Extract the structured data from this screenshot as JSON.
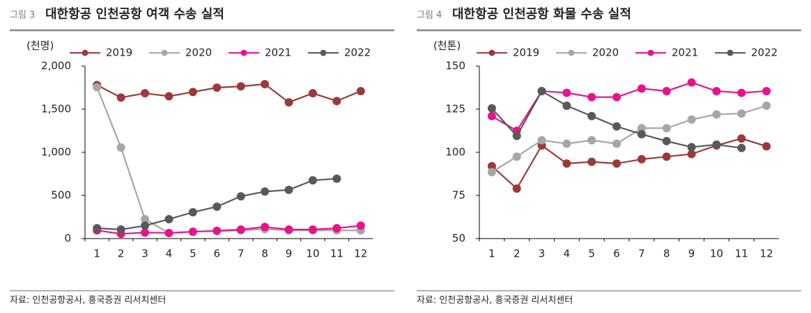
{
  "chart_data": [
    {
      "type": "line",
      "figure_label": "그림 3",
      "title": "대한항공 인천공항 여객 수송 실적",
      "y_label": "(천명)",
      "source": "자료: 인천공항공사, 흥국증권 리서치센터",
      "categories": [
        "1",
        "2",
        "3",
        "4",
        "5",
        "6",
        "7",
        "8",
        "9",
        "10",
        "11",
        "12"
      ],
      "ylim": [
        0,
        2000
      ],
      "yticks": [
        0,
        500,
        {
          "value": 1000,
          "label": "1,000"
        },
        {
          "value": 1500,
          "label": "1,500"
        },
        {
          "value": 2000,
          "label": "2,000"
        }
      ],
      "series": [
        {
          "name": "2019",
          "color": "#9b3a3a",
          "values": [
            1780,
            1635,
            1685,
            1650,
            1700,
            1750,
            1765,
            1790,
            1580,
            1685,
            1595,
            1710
          ]
        },
        {
          "name": "2020",
          "color": "#a6a6a6",
          "values": [
            1755,
            1055,
            225,
            65,
            80,
            90,
            95,
            110,
            95,
            95,
            95,
            95
          ]
        },
        {
          "name": "2021",
          "color": "#e6138c",
          "values": [
            95,
            55,
            70,
            65,
            80,
            90,
            105,
            135,
            105,
            105,
            120,
            150
          ]
        },
        {
          "name": "2022",
          "color": "#595959",
          "values": [
            120,
            105,
            150,
            225,
            305,
            370,
            490,
            545,
            565,
            675,
            695,
            null
          ]
        }
      ]
    },
    {
      "type": "line",
      "figure_label": "그림 4",
      "title": "대한항공 인천공항 화물 수송 실적",
      "y_label": "(천톤)",
      "source": "자료: 인천공항공사, 흥국증권 리서치센터",
      "categories": [
        "1",
        "2",
        "3",
        "4",
        "5",
        "6",
        "7",
        "8",
        "9",
        "10",
        "11",
        "12"
      ],
      "ylim": [
        50,
        150
      ],
      "yticks": [
        50,
        75,
        100,
        125,
        150
      ],
      "series": [
        {
          "name": "2019",
          "color": "#9b3a3a",
          "values": [
            92,
            79,
            104,
            93.5,
            94.5,
            93.5,
            96,
            97.5,
            99,
            104,
            108,
            103.5
          ]
        },
        {
          "name": "2020",
          "color": "#a6a6a6",
          "values": [
            88.5,
            97.5,
            107,
            105,
            107,
            105,
            114,
            114,
            119,
            122,
            122.5,
            127
          ]
        },
        {
          "name": "2021",
          "color": "#e6138c",
          "values": [
            121,
            112.5,
            135.5,
            134.5,
            132,
            132,
            137,
            135.5,
            140.5,
            135.5,
            134.5,
            135.5
          ]
        },
        {
          "name": "2022",
          "color": "#595959",
          "values": [
            125.5,
            109.5,
            135.5,
            127,
            121,
            115,
            110.5,
            106.5,
            103,
            104.5,
            102.5,
            null
          ]
        }
      ]
    }
  ]
}
